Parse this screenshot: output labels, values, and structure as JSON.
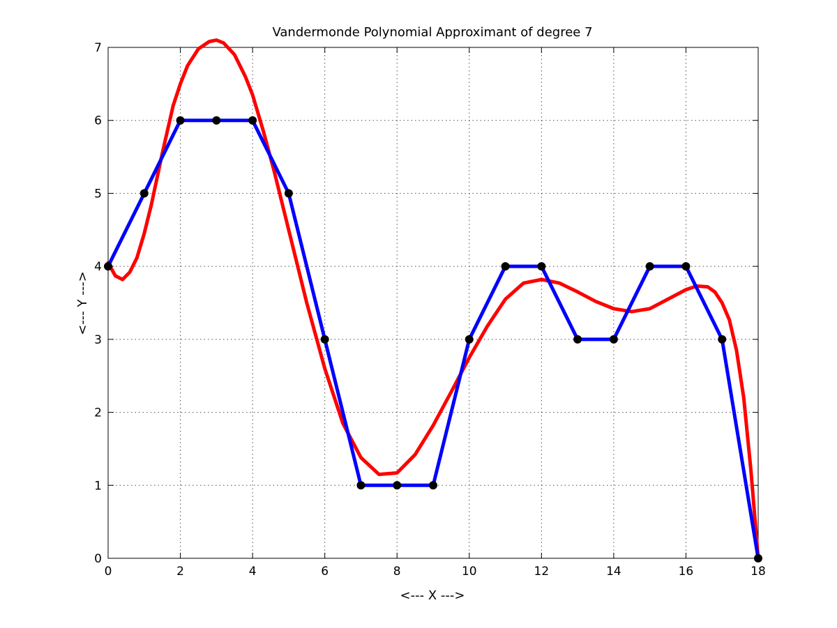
{
  "chart_data": {
    "type": "line",
    "title": "Vandermonde Polynomial Approximant of degree 7",
    "xlabel": "<--- X --->",
    "ylabel": "<--- Y --->",
    "xlim": [
      0,
      18
    ],
    "ylim": [
      0,
      7
    ],
    "xticks": [
      0,
      2,
      4,
      6,
      8,
      10,
      12,
      14,
      16,
      18
    ],
    "yticks": [
      0,
      1,
      2,
      3,
      4,
      5,
      6,
      7
    ],
    "grid": true,
    "series": [
      {
        "color": "#0000ff",
        "marker": "circle",
        "marker_color": "#000000",
        "x": [
          0,
          1,
          2,
          3,
          4,
          5,
          6,
          7,
          8,
          9,
          10,
          11,
          12,
          13,
          14,
          15,
          16,
          17,
          18
        ],
        "y": [
          4,
          5,
          6,
          6,
          6,
          5,
          3,
          1,
          1,
          1,
          3,
          4,
          4,
          3,
          3,
          4,
          4,
          3,
          0
        ]
      },
      {
        "color": "#ff0000",
        "x": [
          0,
          0.2,
          0.4,
          0.6,
          0.8,
          1.0,
          1.2,
          1.5,
          1.8,
          2.0,
          2.2,
          2.5,
          2.8,
          3.0,
          3.2,
          3.5,
          3.8,
          4.0,
          4.3,
          4.6,
          5.0,
          5.5,
          6.0,
          6.5,
          7.0,
          7.5,
          8.0,
          8.5,
          9.0,
          9.5,
          10.0,
          10.5,
          11.0,
          11.5,
          12.0,
          12.5,
          13.0,
          13.5,
          14.0,
          14.5,
          15.0,
          15.5,
          16.0,
          16.3,
          16.6,
          16.8,
          17.0,
          17.2,
          17.4,
          17.6,
          17.8,
          18.0
        ],
        "y": [
          4.05,
          3.87,
          3.82,
          3.92,
          4.12,
          4.45,
          4.85,
          5.55,
          6.2,
          6.5,
          6.75,
          6.98,
          7.08,
          7.1,
          7.06,
          6.9,
          6.6,
          6.35,
          5.85,
          5.3,
          4.5,
          3.5,
          2.6,
          1.85,
          1.38,
          1.15,
          1.17,
          1.42,
          1.82,
          2.28,
          2.75,
          3.18,
          3.55,
          3.77,
          3.82,
          3.77,
          3.65,
          3.52,
          3.42,
          3.38,
          3.42,
          3.55,
          3.68,
          3.73,
          3.72,
          3.65,
          3.5,
          3.27,
          2.85,
          2.2,
          1.2,
          0
        ]
      }
    ]
  }
}
